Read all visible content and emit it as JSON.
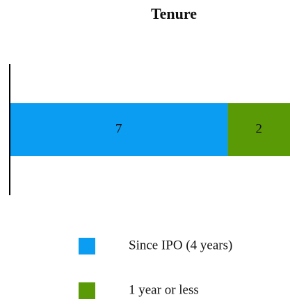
{
  "chart_data": {
    "type": "bar",
    "orientation": "horizontal",
    "stacked": true,
    "title": "Tenure",
    "categories": [
      null
    ],
    "series": [
      {
        "name": "Since IPO (4 years)",
        "color": "#0b9df2",
        "values": [
          7
        ]
      },
      {
        "name": "1 year or less",
        "color": "#5a9a06",
        "values": [
          2
        ]
      }
    ],
    "xlim": [
      0,
      9
    ],
    "legend": "bottom"
  }
}
